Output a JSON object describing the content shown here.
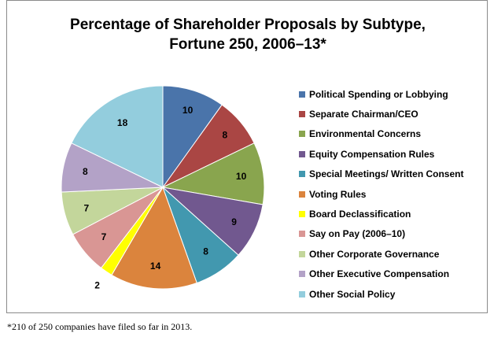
{
  "chart_data": {
    "type": "pie",
    "title": "Percentage of Shareholder Proposals by Subtype, Fortune 250, 2006–13*",
    "title_lines": [
      "Percentage of Shareholder  Proposals  by Subtype,",
      "Fortune 250, 2006–13*"
    ],
    "legend_position": "right",
    "start": "top, clockwise",
    "slices": [
      {
        "label": "Political Spending or Lobbying",
        "value": 10,
        "value_label": "10",
        "color": "#4a74aa"
      },
      {
        "label": "Separate Chairman/CEO",
        "value": 8,
        "value_label": "8",
        "color": "#aa4644"
      },
      {
        "label": "Environmental Concerns",
        "value": 10,
        "value_label": "10",
        "color": "#89a54e"
      },
      {
        "label": "Equity Compensation Rules",
        "value": 9,
        "value_label": "9",
        "color": "#71588f"
      },
      {
        "label": "Special Meetings/ Written Consent",
        "value": 8,
        "value_label": "8",
        "color": "#4298af"
      },
      {
        "label": "Voting Rules",
        "value": 14,
        "value_label": "14",
        "color": "#db843d"
      },
      {
        "label": "Board Declassification",
        "value": 2,
        "value_label": "2",
        "color": "#ffff00"
      },
      {
        "label": "Say on Pay (2006–10)",
        "value": 7,
        "value_label": "7",
        "color": "#d99694"
      },
      {
        "label": "Other Corporate Governance",
        "value": 7,
        "value_label": "7",
        "color": "#c3d69b"
      },
      {
        "label": "Other Executive Compensation",
        "value": 8,
        "value_label": "8",
        "color": "#b3a2c7"
      },
      {
        "label": "Other Social Policy",
        "value": 18,
        "value_label": "18",
        "color": "#93cddd"
      }
    ]
  },
  "footnote": "*210 of 250 companies have filed so far in 2013."
}
